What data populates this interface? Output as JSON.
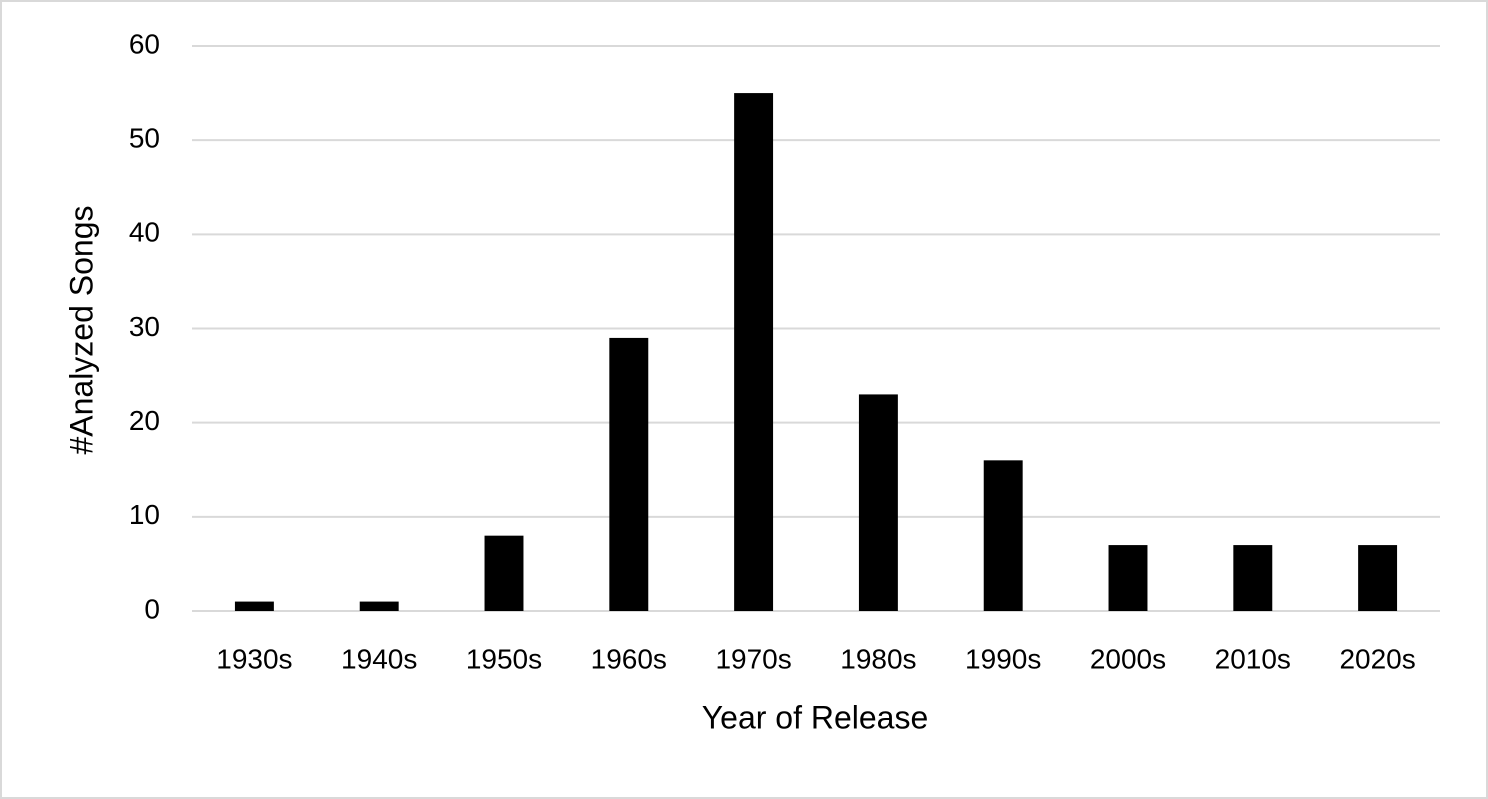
{
  "chart_data": {
    "type": "bar",
    "x_label": "Year of Release",
    "y_label": "#Analyzed Songs",
    "categories": [
      "1930s",
      "1940s",
      "1950s",
      "1960s",
      "1970s",
      "1980s",
      "1990s",
      "2000s",
      "2010s",
      "2020s"
    ],
    "values": [
      1,
      1,
      8,
      29,
      55,
      23,
      16,
      7,
      7,
      7
    ],
    "color": "#000000",
    "ylim": [
      0,
      60
    ],
    "yticks": [
      0,
      10,
      20,
      30,
      40,
      50,
      60
    ],
    "grid": true
  }
}
